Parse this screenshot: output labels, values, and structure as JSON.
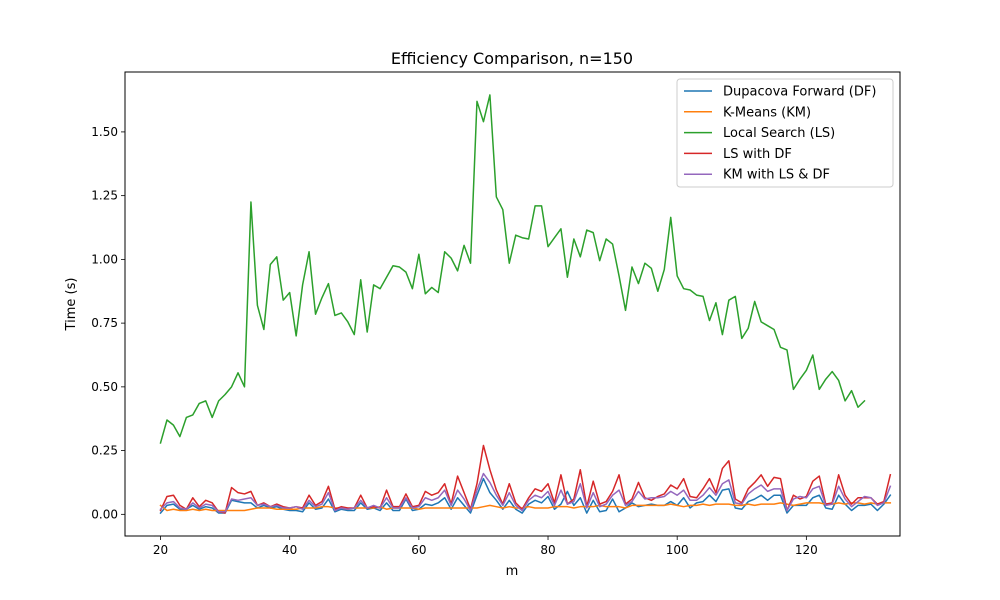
{
  "chart_data": {
    "type": "line",
    "title": "Efficiency Comparison, n=150",
    "xlabel": "m",
    "ylabel": "Time (s)",
    "xlim": [
      14.5,
      134.5
    ],
    "ylim": [
      -0.085,
      1.735
    ],
    "xticks": [
      20,
      40,
      60,
      80,
      100,
      120
    ],
    "yticks": [
      0.0,
      0.25,
      0.5,
      0.75,
      1.0,
      1.25,
      1.5
    ],
    "ytick_labels": [
      "0.00",
      "0.25",
      "0.50",
      "0.75",
      "1.00",
      "1.25",
      "1.50"
    ],
    "legend_position": "top-right",
    "x_start": 20,
    "x_end": 129,
    "series": [
      {
        "name": "Dupacova Forward (DF)",
        "color": "#1f77b4",
        "values": [
          0.005,
          0.035,
          0.04,
          0.02,
          0.02,
          0.035,
          0.02,
          0.03,
          0.025,
          0.005,
          0.005,
          0.055,
          0.05,
          0.045,
          0.045,
          0.025,
          0.035,
          0.025,
          0.03,
          0.02,
          0.015,
          0.015,
          0.01,
          0.045,
          0.02,
          0.025,
          0.06,
          0.01,
          0.02,
          0.015,
          0.015,
          0.045,
          0.02,
          0.025,
          0.015,
          0.045,
          0.015,
          0.015,
          0.06,
          0.015,
          0.02,
          0.04,
          0.035,
          0.045,
          0.065,
          0.02,
          0.065,
          0.035,
          0.005,
          0.075,
          0.14,
          0.085,
          0.055,
          0.02,
          0.055,
          0.02,
          0.005,
          0.04,
          0.055,
          0.045,
          0.07,
          0.02,
          0.04,
          0.09,
          0.035,
          0.065,
          0.005,
          0.055,
          0.01,
          0.015,
          0.06,
          0.01,
          0.025,
          0.045,
          0.03,
          0.035,
          0.04,
          0.035,
          0.035,
          0.05,
          0.035,
          0.065,
          0.025,
          0.045,
          0.05,
          0.075,
          0.05,
          0.095,
          0.1,
          0.025,
          0.02,
          0.05,
          0.06,
          0.075,
          0.055,
          0.075,
          0.075,
          0.005,
          0.035,
          0.035,
          0.035,
          0.065,
          0.075,
          0.025,
          0.02,
          0.075,
          0.04,
          0.015,
          0.035,
          0.035,
          0.04,
          0.015,
          0.04,
          0.075
        ]
      },
      {
        "name": "K-Means (KM)",
        "color": "#ff7f0e",
        "values": [
          0.035,
          0.015,
          0.02,
          0.015,
          0.015,
          0.02,
          0.015,
          0.02,
          0.015,
          0.015,
          0.015,
          0.015,
          0.015,
          0.015,
          0.02,
          0.025,
          0.025,
          0.025,
          0.02,
          0.02,
          0.02,
          0.02,
          0.025,
          0.025,
          0.025,
          0.03,
          0.03,
          0.025,
          0.025,
          0.02,
          0.025,
          0.025,
          0.025,
          0.025,
          0.03,
          0.02,
          0.025,
          0.025,
          0.025,
          0.025,
          0.02,
          0.025,
          0.025,
          0.025,
          0.025,
          0.025,
          0.025,
          0.025,
          0.025,
          0.025,
          0.03,
          0.035,
          0.03,
          0.025,
          0.03,
          0.025,
          0.025,
          0.03,
          0.025,
          0.025,
          0.025,
          0.03,
          0.03,
          0.03,
          0.025,
          0.03,
          0.03,
          0.03,
          0.035,
          0.03,
          0.03,
          0.03,
          0.025,
          0.035,
          0.035,
          0.035,
          0.035,
          0.035,
          0.035,
          0.04,
          0.035,
          0.03,
          0.035,
          0.035,
          0.04,
          0.035,
          0.04,
          0.04,
          0.04,
          0.035,
          0.035,
          0.04,
          0.035,
          0.04,
          0.04,
          0.04,
          0.045,
          0.04,
          0.035,
          0.04,
          0.045,
          0.045,
          0.045,
          0.04,
          0.04,
          0.045,
          0.04,
          0.045,
          0.045,
          0.04,
          0.045,
          0.04,
          0.045,
          0.045
        ]
      },
      {
        "name": "Local Search (LS)",
        "color": "#2ca02c",
        "values": [
          0.28,
          0.37,
          0.35,
          0.305,
          0.38,
          0.39,
          0.435,
          0.445,
          0.38,
          0.445,
          0.47,
          0.5,
          0.555,
          0.5,
          1.225,
          0.82,
          0.725,
          0.98,
          1.01,
          0.84,
          0.87,
          0.7,
          0.9,
          1.03,
          0.785,
          0.85,
          0.905,
          0.78,
          0.79,
          0.755,
          0.705,
          0.92,
          0.715,
          0.9,
          0.885,
          0.93,
          0.975,
          0.97,
          0.95,
          0.885,
          1.02,
          0.865,
          0.89,
          0.87,
          1.03,
          1.005,
          0.955,
          1.055,
          0.985,
          1.62,
          1.54,
          1.645,
          1.245,
          1.195,
          0.985,
          1.095,
          1.085,
          1.08,
          1.21,
          1.21,
          1.05,
          1.085,
          1.12,
          0.93,
          1.08,
          1.01,
          1.115,
          1.105,
          0.995,
          1.08,
          1.06,
          0.935,
          0.8,
          0.97,
          0.905,
          0.985,
          0.965,
          0.875,
          0.96,
          1.165,
          0.935,
          0.885,
          0.88,
          0.86,
          0.855,
          0.76,
          0.83,
          0.705,
          0.84,
          0.855,
          0.69,
          0.73,
          0.835,
          0.755,
          0.74,
          0.725,
          0.655,
          0.645,
          0.49,
          0.53,
          0.565,
          0.625,
          0.49,
          0.53,
          0.56,
          0.525,
          0.445,
          0.485,
          0.42,
          0.445
        ]
      },
      {
        "name": "LS with DF",
        "color": "#d62728",
        "values": [
          0.015,
          0.07,
          0.075,
          0.035,
          0.02,
          0.065,
          0.03,
          0.055,
          0.045,
          0.01,
          0.005,
          0.105,
          0.085,
          0.08,
          0.09,
          0.035,
          0.045,
          0.03,
          0.04,
          0.03,
          0.025,
          0.03,
          0.025,
          0.075,
          0.035,
          0.05,
          0.11,
          0.02,
          0.03,
          0.025,
          0.025,
          0.075,
          0.025,
          0.03,
          0.025,
          0.095,
          0.03,
          0.03,
          0.08,
          0.03,
          0.035,
          0.09,
          0.075,
          0.085,
          0.12,
          0.04,
          0.15,
          0.085,
          0.02,
          0.12,
          0.27,
          0.175,
          0.095,
          0.04,
          0.12,
          0.045,
          0.02,
          0.065,
          0.1,
          0.09,
          0.12,
          0.045,
          0.155,
          0.04,
          0.06,
          0.175,
          0.03,
          0.13,
          0.04,
          0.05,
          0.09,
          0.155,
          0.04,
          0.06,
          0.125,
          0.065,
          0.055,
          0.07,
          0.08,
          0.115,
          0.1,
          0.14,
          0.07,
          0.065,
          0.1,
          0.14,
          0.085,
          0.18,
          0.21,
          0.06,
          0.045,
          0.1,
          0.125,
          0.155,
          0.11,
          0.145,
          0.14,
          0.015,
          0.075,
          0.06,
          0.07,
          0.13,
          0.15,
          0.04,
          0.045,
          0.155,
          0.075,
          0.04,
          0.065,
          0.065,
          0.065,
          0.04,
          0.05,
          0.155
        ]
      },
      {
        "name": "KM with LS & DF",
        "color": "#9467bd",
        "values": [
          0.02,
          0.045,
          0.05,
          0.025,
          0.02,
          0.045,
          0.025,
          0.04,
          0.035,
          0.01,
          0.01,
          0.06,
          0.055,
          0.06,
          0.065,
          0.035,
          0.04,
          0.03,
          0.035,
          0.025,
          0.025,
          0.03,
          0.02,
          0.055,
          0.03,
          0.04,
          0.085,
          0.015,
          0.025,
          0.02,
          0.025,
          0.055,
          0.025,
          0.035,
          0.025,
          0.065,
          0.025,
          0.025,
          0.065,
          0.025,
          0.03,
          0.065,
          0.055,
          0.065,
          0.095,
          0.035,
          0.095,
          0.06,
          0.015,
          0.095,
          0.16,
          0.125,
          0.075,
          0.035,
          0.085,
          0.035,
          0.015,
          0.055,
          0.075,
          0.065,
          0.09,
          0.035,
          0.095,
          0.04,
          0.05,
          0.12,
          0.025,
          0.085,
          0.03,
          0.04,
          0.075,
          0.095,
          0.035,
          0.05,
          0.09,
          0.06,
          0.065,
          0.065,
          0.07,
          0.09,
          0.075,
          0.095,
          0.055,
          0.055,
          0.075,
          0.105,
          0.075,
          0.12,
          0.135,
          0.045,
          0.04,
          0.08,
          0.1,
          0.115,
          0.09,
          0.1,
          0.1,
          0.015,
          0.06,
          0.07,
          0.065,
          0.1,
          0.11,
          0.035,
          0.04,
          0.11,
          0.06,
          0.03,
          0.05,
          0.07,
          0.065,
          0.035,
          0.045,
          0.11
        ]
      }
    ]
  }
}
